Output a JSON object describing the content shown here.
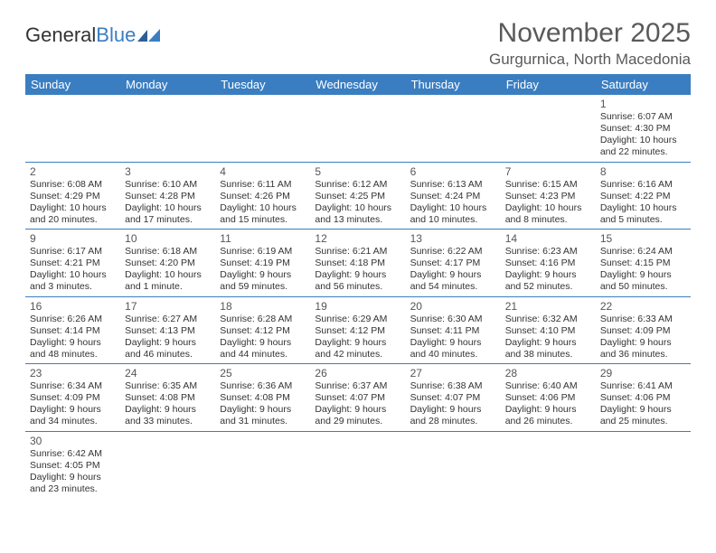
{
  "header": {
    "logo_general": "General",
    "logo_blue": "Blue",
    "month_title": "November 2025",
    "location": "Gurgurnica, North Macedonia"
  },
  "colors": {
    "header_bg": "#3a7ec1",
    "header_text": "#ffffff",
    "border": "#3a7ec1",
    "text": "#333333",
    "title_text": "#5a5a5a"
  },
  "days_of_week": [
    "Sunday",
    "Monday",
    "Tuesday",
    "Wednesday",
    "Thursday",
    "Friday",
    "Saturday"
  ],
  "first_weekday_index": 6,
  "days": [
    {
      "n": 1,
      "sunrise": "6:07 AM",
      "sunset": "4:30 PM",
      "daylight": "10 hours and 22 minutes."
    },
    {
      "n": 2,
      "sunrise": "6:08 AM",
      "sunset": "4:29 PM",
      "daylight": "10 hours and 20 minutes."
    },
    {
      "n": 3,
      "sunrise": "6:10 AM",
      "sunset": "4:28 PM",
      "daylight": "10 hours and 17 minutes."
    },
    {
      "n": 4,
      "sunrise": "6:11 AM",
      "sunset": "4:26 PM",
      "daylight": "10 hours and 15 minutes."
    },
    {
      "n": 5,
      "sunrise": "6:12 AM",
      "sunset": "4:25 PM",
      "daylight": "10 hours and 13 minutes."
    },
    {
      "n": 6,
      "sunrise": "6:13 AM",
      "sunset": "4:24 PM",
      "daylight": "10 hours and 10 minutes."
    },
    {
      "n": 7,
      "sunrise": "6:15 AM",
      "sunset": "4:23 PM",
      "daylight": "10 hours and 8 minutes."
    },
    {
      "n": 8,
      "sunrise": "6:16 AM",
      "sunset": "4:22 PM",
      "daylight": "10 hours and 5 minutes."
    },
    {
      "n": 9,
      "sunrise": "6:17 AM",
      "sunset": "4:21 PM",
      "daylight": "10 hours and 3 minutes."
    },
    {
      "n": 10,
      "sunrise": "6:18 AM",
      "sunset": "4:20 PM",
      "daylight": "10 hours and 1 minute."
    },
    {
      "n": 11,
      "sunrise": "6:19 AM",
      "sunset": "4:19 PM",
      "daylight": "9 hours and 59 minutes."
    },
    {
      "n": 12,
      "sunrise": "6:21 AM",
      "sunset": "4:18 PM",
      "daylight": "9 hours and 56 minutes."
    },
    {
      "n": 13,
      "sunrise": "6:22 AM",
      "sunset": "4:17 PM",
      "daylight": "9 hours and 54 minutes."
    },
    {
      "n": 14,
      "sunrise": "6:23 AM",
      "sunset": "4:16 PM",
      "daylight": "9 hours and 52 minutes."
    },
    {
      "n": 15,
      "sunrise": "6:24 AM",
      "sunset": "4:15 PM",
      "daylight": "9 hours and 50 minutes."
    },
    {
      "n": 16,
      "sunrise": "6:26 AM",
      "sunset": "4:14 PM",
      "daylight": "9 hours and 48 minutes."
    },
    {
      "n": 17,
      "sunrise": "6:27 AM",
      "sunset": "4:13 PM",
      "daylight": "9 hours and 46 minutes."
    },
    {
      "n": 18,
      "sunrise": "6:28 AM",
      "sunset": "4:12 PM",
      "daylight": "9 hours and 44 minutes."
    },
    {
      "n": 19,
      "sunrise": "6:29 AM",
      "sunset": "4:12 PM",
      "daylight": "9 hours and 42 minutes."
    },
    {
      "n": 20,
      "sunrise": "6:30 AM",
      "sunset": "4:11 PM",
      "daylight": "9 hours and 40 minutes."
    },
    {
      "n": 21,
      "sunrise": "6:32 AM",
      "sunset": "4:10 PM",
      "daylight": "9 hours and 38 minutes."
    },
    {
      "n": 22,
      "sunrise": "6:33 AM",
      "sunset": "4:09 PM",
      "daylight": "9 hours and 36 minutes."
    },
    {
      "n": 23,
      "sunrise": "6:34 AM",
      "sunset": "4:09 PM",
      "daylight": "9 hours and 34 minutes."
    },
    {
      "n": 24,
      "sunrise": "6:35 AM",
      "sunset": "4:08 PM",
      "daylight": "9 hours and 33 minutes."
    },
    {
      "n": 25,
      "sunrise": "6:36 AM",
      "sunset": "4:08 PM",
      "daylight": "9 hours and 31 minutes."
    },
    {
      "n": 26,
      "sunrise": "6:37 AM",
      "sunset": "4:07 PM",
      "daylight": "9 hours and 29 minutes."
    },
    {
      "n": 27,
      "sunrise": "6:38 AM",
      "sunset": "4:07 PM",
      "daylight": "9 hours and 28 minutes."
    },
    {
      "n": 28,
      "sunrise": "6:40 AM",
      "sunset": "4:06 PM",
      "daylight": "9 hours and 26 minutes."
    },
    {
      "n": 29,
      "sunrise": "6:41 AM",
      "sunset": "4:06 PM",
      "daylight": "9 hours and 25 minutes."
    },
    {
      "n": 30,
      "sunrise": "6:42 AM",
      "sunset": "4:05 PM",
      "daylight": "9 hours and 23 minutes."
    }
  ],
  "labels": {
    "sunrise": "Sunrise:",
    "sunset": "Sunset:",
    "daylight": "Daylight:"
  }
}
